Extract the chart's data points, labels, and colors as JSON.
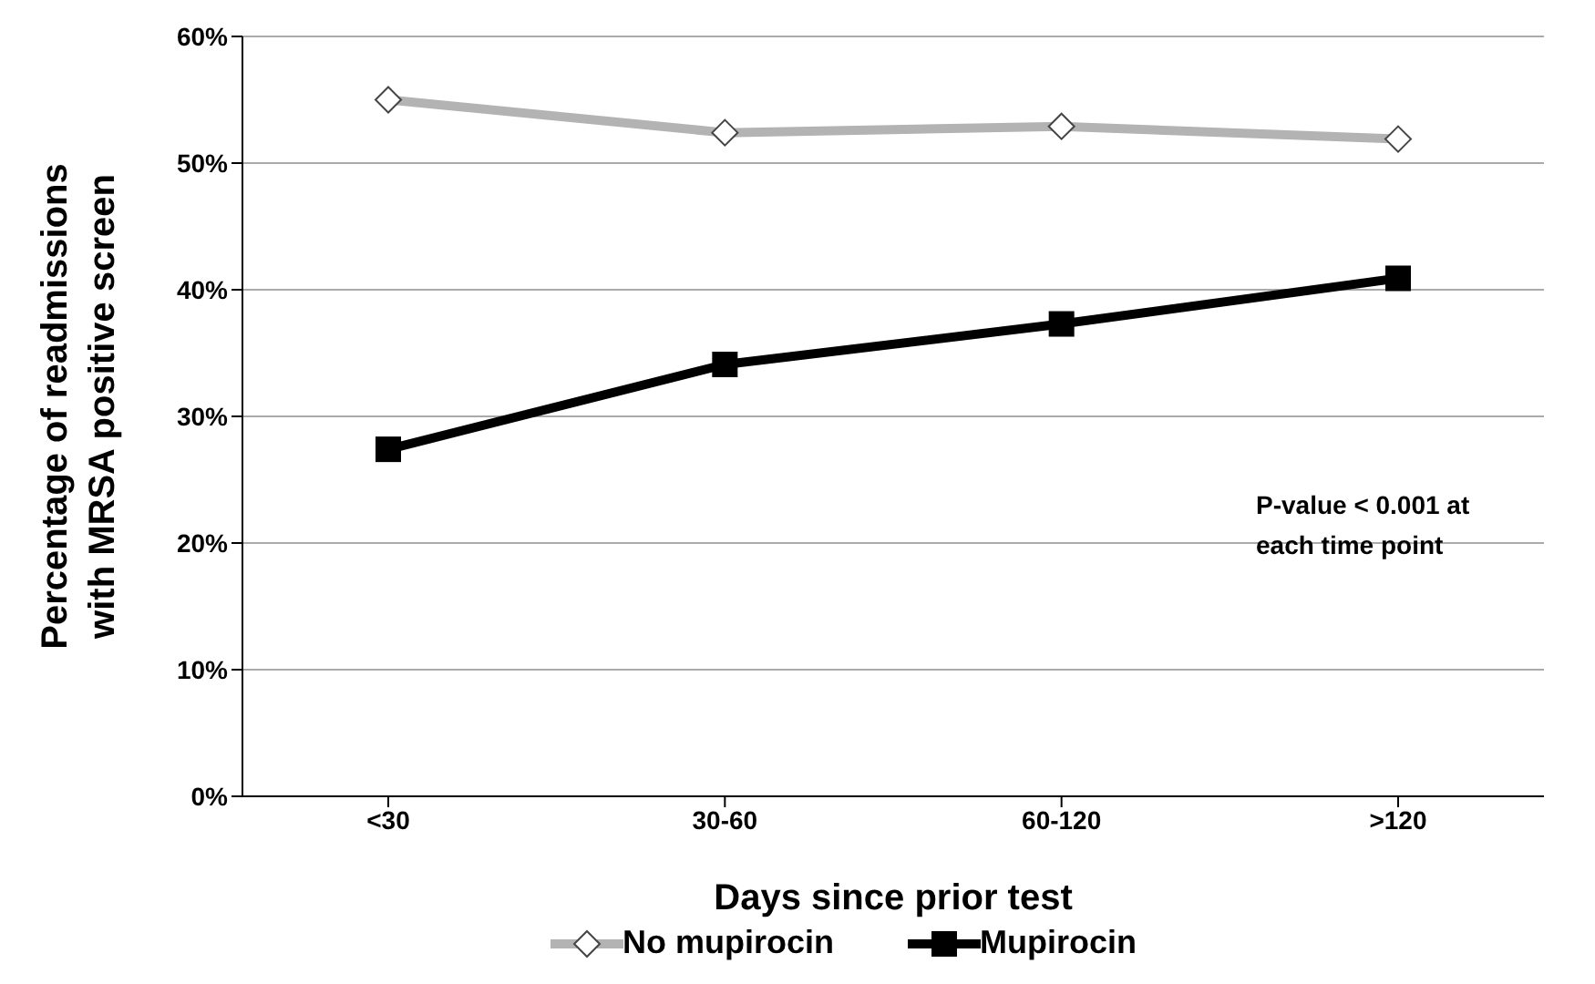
{
  "chart_data": {
    "type": "line",
    "xlabel": "Days since prior test",
    "ylabel": "Percentage of  readmissions with MRSA  positive screen",
    "categories": [
      "<30",
      "30-60",
      "60-120",
      ">120"
    ],
    "series": [
      {
        "name": "No mupirocin",
        "color": "#b3b3b3",
        "marker": "diamond",
        "values": [
          55.0,
          52.4,
          52.9,
          51.9
        ]
      },
      {
        "name": "Mupirocin",
        "color": "#000000",
        "marker": "square",
        "values": [
          27.4,
          34.1,
          37.3,
          40.9
        ]
      }
    ],
    "ylim": [
      0,
      60
    ],
    "yticks": [
      {
        "value": 0,
        "label": "0%"
      },
      {
        "value": 10,
        "label": "10%"
      },
      {
        "value": 20,
        "label": "20%"
      },
      {
        "value": 30,
        "label": "30%"
      },
      {
        "value": 40,
        "label": "40%"
      },
      {
        "value": 50,
        "label": "50%"
      },
      {
        "value": 60,
        "label": "60%"
      }
    ],
    "grid": "y",
    "legend": "bottom",
    "annotations": [
      "P-value < 0.001 at each time point"
    ]
  }
}
